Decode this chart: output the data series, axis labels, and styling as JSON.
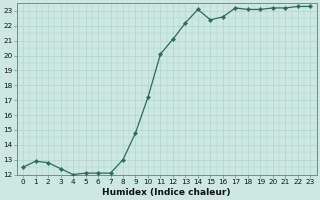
{
  "xlabel": "Humidex (Indice chaleur)",
  "ylabel": "",
  "x": [
    0,
    1,
    2,
    3,
    4,
    5,
    6,
    7,
    8,
    9,
    10,
    11,
    12,
    13,
    14,
    15,
    16,
    17,
    18,
    19,
    20,
    21,
    22,
    23
  ],
  "y": [
    12.5,
    12.9,
    12.8,
    12.4,
    12.0,
    12.1,
    12.1,
    12.1,
    13.0,
    14.8,
    17.2,
    20.1,
    21.1,
    22.2,
    23.1,
    22.4,
    22.6,
    23.2,
    23.1,
    23.1,
    23.2,
    23.2,
    23.3,
    23.3
  ],
  "ylim": [
    12,
    23.5
  ],
  "xlim": [
    -0.5,
    23.5
  ],
  "yticks": [
    12,
    13,
    14,
    15,
    16,
    17,
    18,
    19,
    20,
    21,
    22,
    23
  ],
  "xticks": [
    0,
    1,
    2,
    3,
    4,
    5,
    6,
    7,
    8,
    9,
    10,
    11,
    12,
    13,
    14,
    15,
    16,
    17,
    18,
    19,
    20,
    21,
    22,
    23
  ],
  "line_color": "#2d6b5e",
  "marker_color": "#2d6b5e",
  "bg_color": "#cce8e0",
  "grid_major_color": "#b0d4cc",
  "grid_minor_color": "#b0d4cc",
  "tick_fontsize": 5.2,
  "label_fontsize": 6.5,
  "line_width": 0.9,
  "marker_size": 2.2,
  "fig_width": 3.2,
  "fig_height": 2.0,
  "dpi": 100
}
